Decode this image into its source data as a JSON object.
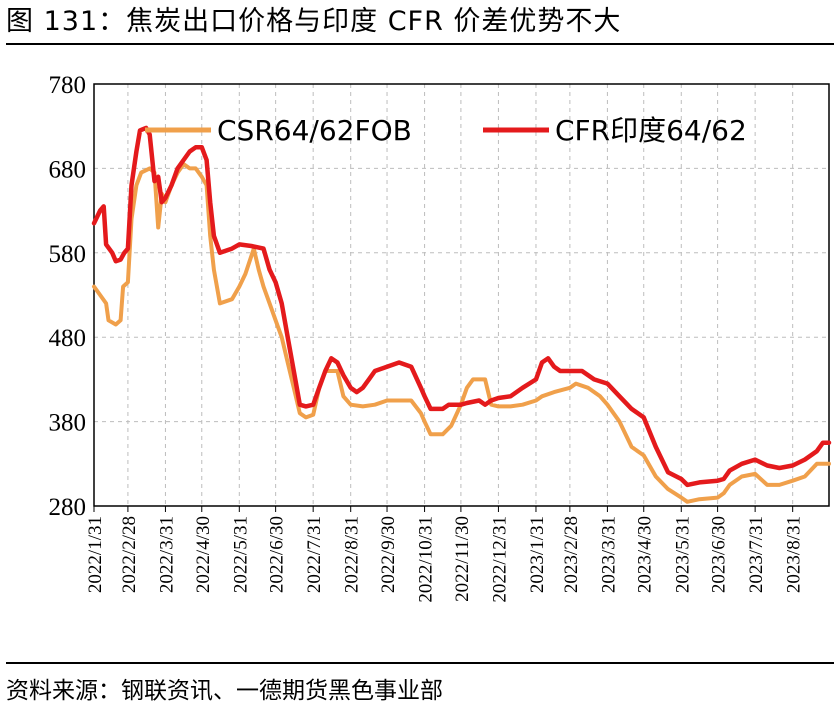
{
  "header": {
    "title": "图 131：焦炭出口价格与印度 CFR 价差优势不大"
  },
  "footer": {
    "source": "资料来源：钢联资讯、一德期货黑色事业部"
  },
  "chart_data": {
    "type": "line",
    "title": "图 131：焦炭出口价格与印度 CFR 价差优势不大",
    "xlabel": "",
    "ylabel": "",
    "ylim": [
      280,
      780
    ],
    "yticks": [
      280,
      380,
      480,
      580,
      680,
      780
    ],
    "xlim": [
      "2022-01-31",
      "2023-09-30"
    ],
    "xticks": [
      "2022/1/31",
      "2022/2/28",
      "2022/3/31",
      "2022/4/30",
      "2022/5/31",
      "2022/6/30",
      "2022/7/31",
      "2022/8/31",
      "2022/9/30",
      "2022/10/31",
      "2022/11/30",
      "2022/12/31",
      "2023/1/31",
      "2023/2/28",
      "2023/3/31",
      "2023/4/30",
      "2023/5/31",
      "2023/6/30",
      "2023/7/31",
      "2023/8/31"
    ],
    "grid": {
      "y": true,
      "x": true,
      "style": "dashed"
    },
    "legend_position": "top",
    "colors": {
      "CSR64/62FOB": "#F0A04B",
      "CFR印度64/62": "#E41A1C"
    },
    "series": [
      {
        "name": "CSR64/62FOB",
        "points": [
          [
            "2022-01-31",
            540
          ],
          [
            "2022-02-05",
            530
          ],
          [
            "2022-02-10",
            520
          ],
          [
            "2022-02-12",
            500
          ],
          [
            "2022-02-18",
            495
          ],
          [
            "2022-02-22",
            500
          ],
          [
            "2022-02-24",
            540
          ],
          [
            "2022-02-28",
            545
          ],
          [
            "2022-03-03",
            620
          ],
          [
            "2022-03-07",
            660
          ],
          [
            "2022-03-11",
            675
          ],
          [
            "2022-03-18",
            680
          ],
          [
            "2022-03-22",
            675
          ],
          [
            "2022-03-25",
            610
          ],
          [
            "2022-03-28",
            650
          ],
          [
            "2022-03-31",
            640
          ],
          [
            "2022-04-05",
            660
          ],
          [
            "2022-04-10",
            675
          ],
          [
            "2022-04-15",
            685
          ],
          [
            "2022-04-20",
            680
          ],
          [
            "2022-04-25",
            680
          ],
          [
            "2022-04-30",
            670
          ],
          [
            "2022-05-04",
            660
          ],
          [
            "2022-05-07",
            600
          ],
          [
            "2022-05-10",
            560
          ],
          [
            "2022-05-15",
            520
          ],
          [
            "2022-05-25",
            525
          ],
          [
            "2022-05-31",
            540
          ],
          [
            "2022-06-05",
            555
          ],
          [
            "2022-06-12",
            585
          ],
          [
            "2022-06-16",
            560
          ],
          [
            "2022-06-20",
            540
          ],
          [
            "2022-06-25",
            520
          ],
          [
            "2022-06-30",
            500
          ],
          [
            "2022-07-05",
            480
          ],
          [
            "2022-07-10",
            450
          ],
          [
            "2022-07-15",
            420
          ],
          [
            "2022-07-20",
            390
          ],
          [
            "2022-07-25",
            385
          ],
          [
            "2022-07-31",
            388
          ],
          [
            "2022-08-05",
            420
          ],
          [
            "2022-08-10",
            440
          ],
          [
            "2022-08-20",
            440
          ],
          [
            "2022-08-25",
            410
          ],
          [
            "2022-08-31",
            400
          ],
          [
            "2022-09-10",
            398
          ],
          [
            "2022-09-20",
            400
          ],
          [
            "2022-09-30",
            405
          ],
          [
            "2022-10-10",
            405
          ],
          [
            "2022-10-20",
            405
          ],
          [
            "2022-10-28",
            390
          ],
          [
            "2022-10-31",
            380
          ],
          [
            "2022-11-05",
            365
          ],
          [
            "2022-11-15",
            365
          ],
          [
            "2022-11-22",
            375
          ],
          [
            "2022-11-30",
            400
          ],
          [
            "2022-12-05",
            420
          ],
          [
            "2022-12-10",
            430
          ],
          [
            "2022-12-20",
            430
          ],
          [
            "2022-12-25",
            400
          ],
          [
            "2022-12-31",
            398
          ],
          [
            "2023-01-10",
            398
          ],
          [
            "2023-01-20",
            400
          ],
          [
            "2023-01-31",
            405
          ],
          [
            "2023-02-05",
            410
          ],
          [
            "2023-02-15",
            415
          ],
          [
            "2023-02-28",
            420
          ],
          [
            "2023-03-05",
            425
          ],
          [
            "2023-03-15",
            420
          ],
          [
            "2023-03-25",
            410
          ],
          [
            "2023-03-31",
            400
          ],
          [
            "2023-04-10",
            380
          ],
          [
            "2023-04-20",
            350
          ],
          [
            "2023-04-30",
            340
          ],
          [
            "2023-05-10",
            315
          ],
          [
            "2023-05-20",
            300
          ],
          [
            "2023-05-31",
            290
          ],
          [
            "2023-06-05",
            285
          ],
          [
            "2023-06-15",
            288
          ],
          [
            "2023-06-30",
            290
          ],
          [
            "2023-07-05",
            295
          ],
          [
            "2023-07-10",
            305
          ],
          [
            "2023-07-20",
            315
          ],
          [
            "2023-07-31",
            318
          ],
          [
            "2023-08-10",
            305
          ],
          [
            "2023-08-20",
            305
          ],
          [
            "2023-08-31",
            310
          ],
          [
            "2023-09-10",
            315
          ],
          [
            "2023-09-20",
            330
          ],
          [
            "2023-09-30",
            330
          ]
        ]
      },
      {
        "name": "CFR印度64/62",
        "points": [
          [
            "2022-01-31",
            615
          ],
          [
            "2022-02-05",
            630
          ],
          [
            "2022-02-08",
            635
          ],
          [
            "2022-02-10",
            590
          ],
          [
            "2022-02-15",
            580
          ],
          [
            "2022-02-18",
            570
          ],
          [
            "2022-02-22",
            572
          ],
          [
            "2022-02-25",
            580
          ],
          [
            "2022-02-28",
            585
          ],
          [
            "2022-03-03",
            660
          ],
          [
            "2022-03-07",
            700
          ],
          [
            "2022-03-10",
            725
          ],
          [
            "2022-03-15",
            728
          ],
          [
            "2022-03-18",
            720
          ],
          [
            "2022-03-22",
            665
          ],
          [
            "2022-03-25",
            670
          ],
          [
            "2022-03-28",
            640
          ],
          [
            "2022-03-31",
            645
          ],
          [
            "2022-04-05",
            660
          ],
          [
            "2022-04-10",
            680
          ],
          [
            "2022-04-15",
            690
          ],
          [
            "2022-04-20",
            700
          ],
          [
            "2022-04-25",
            705
          ],
          [
            "2022-04-30",
            705
          ],
          [
            "2022-05-04",
            690
          ],
          [
            "2022-05-07",
            640
          ],
          [
            "2022-05-10",
            600
          ],
          [
            "2022-05-15",
            580
          ],
          [
            "2022-05-25",
            585
          ],
          [
            "2022-05-31",
            590
          ],
          [
            "2022-06-10",
            588
          ],
          [
            "2022-06-20",
            585
          ],
          [
            "2022-06-25",
            560
          ],
          [
            "2022-06-30",
            545
          ],
          [
            "2022-07-05",
            520
          ],
          [
            "2022-07-10",
            480
          ],
          [
            "2022-07-15",
            440
          ],
          [
            "2022-07-20",
            400
          ],
          [
            "2022-07-25",
            398
          ],
          [
            "2022-07-31",
            400
          ],
          [
            "2022-08-05",
            420
          ],
          [
            "2022-08-10",
            440
          ],
          [
            "2022-08-15",
            455
          ],
          [
            "2022-08-20",
            450
          ],
          [
            "2022-08-25",
            435
          ],
          [
            "2022-08-31",
            420
          ],
          [
            "2022-09-05",
            415
          ],
          [
            "2022-09-10",
            420
          ],
          [
            "2022-09-15",
            430
          ],
          [
            "2022-09-20",
            440
          ],
          [
            "2022-09-30",
            445
          ],
          [
            "2022-10-10",
            450
          ],
          [
            "2022-10-20",
            445
          ],
          [
            "2022-10-28",
            420
          ],
          [
            "2022-10-31",
            410
          ],
          [
            "2022-11-05",
            395
          ],
          [
            "2022-11-15",
            395
          ],
          [
            "2022-11-20",
            400
          ],
          [
            "2022-11-30",
            400
          ],
          [
            "2022-12-05",
            402
          ],
          [
            "2022-12-15",
            405
          ],
          [
            "2022-12-20",
            400
          ],
          [
            "2022-12-25",
            405
          ],
          [
            "2022-12-31",
            408
          ],
          [
            "2023-01-10",
            410
          ],
          [
            "2023-01-20",
            420
          ],
          [
            "2023-01-31",
            430
          ],
          [
            "2023-02-05",
            450
          ],
          [
            "2023-02-10",
            455
          ],
          [
            "2023-02-15",
            445
          ],
          [
            "2023-02-20",
            440
          ],
          [
            "2023-02-28",
            440
          ],
          [
            "2023-03-10",
            440
          ],
          [
            "2023-03-20",
            430
          ],
          [
            "2023-03-31",
            425
          ],
          [
            "2023-04-10",
            410
          ],
          [
            "2023-04-20",
            395
          ],
          [
            "2023-04-30",
            385
          ],
          [
            "2023-05-10",
            350
          ],
          [
            "2023-05-20",
            320
          ],
          [
            "2023-05-31",
            312
          ],
          [
            "2023-06-05",
            305
          ],
          [
            "2023-06-15",
            308
          ],
          [
            "2023-06-30",
            310
          ],
          [
            "2023-07-05",
            312
          ],
          [
            "2023-07-10",
            322
          ],
          [
            "2023-07-20",
            330
          ],
          [
            "2023-07-31",
            335
          ],
          [
            "2023-08-10",
            328
          ],
          [
            "2023-08-20",
            325
          ],
          [
            "2023-08-31",
            328
          ],
          [
            "2023-09-10",
            335
          ],
          [
            "2023-09-20",
            345
          ],
          [
            "2023-09-25",
            355
          ],
          [
            "2023-09-30",
            355
          ]
        ]
      }
    ]
  }
}
